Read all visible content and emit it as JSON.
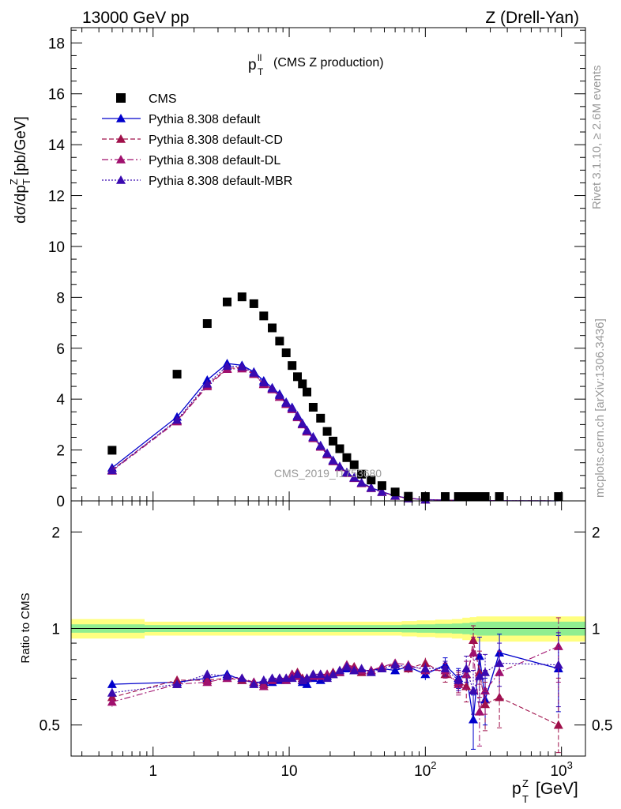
{
  "header": {
    "left": "13000 GeV pp",
    "right": "Z (Drell-Yan)"
  },
  "side": {
    "rivet": "Rivet 3.1.10, ≥ 2.6M events",
    "mcplots": "mcplots.cern.ch [arXiv:1306.3436]"
  },
  "title": {
    "main": "p",
    "sup": "ll",
    "sub": "T",
    "rest": "(CMS Z production)"
  },
  "watermark": "CMS_2019_I1753680",
  "colors": {
    "cms": "#000000",
    "default": "#0000cc",
    "cd": "#a0104a",
    "dl": "#a0106e",
    "mbr": "#3a0ab0",
    "band_yellow": "#ffff80",
    "band_green": "#90ee90"
  },
  "legend": {
    "placement": "top-left",
    "entries": [
      {
        "label": "CMS"
      },
      {
        "label": "Pythia 8.308 default"
      },
      {
        "label": "Pythia 8.308 default-CD"
      },
      {
        "label": "Pythia 8.308 default-DL"
      },
      {
        "label": "Pythia 8.308 default-MBR"
      }
    ]
  },
  "chart_data": [
    {
      "type": "scatter",
      "panel": "main",
      "ylabel": "dσ/dp",
      "ylabel_sup": "Z",
      "ylabel_sub": "T",
      "ylabel_unit": "[pb/GeV]",
      "xscale": "log",
      "xlim": [
        0.25,
        1500
      ],
      "ylim": [
        0,
        18.6
      ],
      "yticks": [
        0,
        2,
        4,
        6,
        8,
        10,
        12,
        14,
        16,
        18
      ],
      "x": [
        0.5,
        1.5,
        2.5,
        3.5,
        4.5,
        5.5,
        6.5,
        7.5,
        8.5,
        9.5,
        10.5,
        11.5,
        12.5,
        13.5,
        15,
        17,
        19,
        21,
        23.5,
        26.5,
        30,
        34,
        40,
        48,
        60,
        75,
        100,
        140,
        175,
        200,
        225,
        250,
        275,
        350,
        950
      ],
      "series": [
        {
          "key": "cms",
          "name": "CMS",
          "values": [
            1.99,
            4.98,
            6.97,
            7.82,
            8.02,
            7.75,
            7.27,
            6.8,
            6.28,
            5.82,
            5.32,
            4.88,
            4.6,
            4.28,
            3.68,
            3.25,
            2.73,
            2.35,
            2.05,
            1.7,
            1.42,
            1.05,
            0.82,
            0.6,
            0.35,
            0.18,
            0.1,
            0.05,
            0.03,
            0.02,
            0.015,
            0.012,
            0.01,
            0.005,
            0.001
          ]
        },
        {
          "key": "default",
          "name": "Pythia 8.308 default",
          "values": [
            1.3,
            3.3,
            4.75,
            5.4,
            5.33,
            5.07,
            4.72,
            4.45,
            4.2,
            3.88,
            3.68,
            3.35,
            3.05,
            2.78,
            2.52,
            2.18,
            1.88,
            1.6,
            1.36,
            1.12,
            0.92,
            0.72,
            0.52,
            0.36,
            0.2,
            0.1,
            0.05,
            0.03,
            0.02,
            0.012,
            0.009,
            0.007,
            0.005,
            0.003,
            0.001
          ]
        },
        {
          "key": "cd",
          "name": "Pythia 8.308 default-CD",
          "values": [
            1.22,
            3.15,
            4.55,
            5.2,
            5.25,
            5.0,
            4.6,
            4.4,
            4.1,
            3.82,
            3.62,
            3.3,
            3.02,
            2.74,
            2.48,
            2.14,
            1.84,
            1.57,
            1.33,
            1.1,
            0.9,
            0.7,
            0.5,
            0.35,
            0.19,
            0.1,
            0.05,
            0.03,
            0.02,
            0.012,
            0.009,
            0.007,
            0.005,
            0.003,
            0.001
          ]
        },
        {
          "key": "dl",
          "name": "Pythia 8.308 default-DL",
          "values": [
            1.18,
            3.12,
            4.5,
            5.18,
            5.2,
            4.98,
            4.58,
            4.38,
            4.08,
            3.8,
            3.6,
            3.28,
            3.0,
            2.72,
            2.46,
            2.12,
            1.82,
            1.55,
            1.32,
            1.09,
            0.89,
            0.69,
            0.5,
            0.34,
            0.19,
            0.1,
            0.05,
            0.03,
            0.02,
            0.012,
            0.009,
            0.007,
            0.005,
            0.003,
            0.001
          ]
        },
        {
          "key": "mbr",
          "name": "Pythia 8.308 default-MBR",
          "values": [
            1.2,
            3.18,
            4.6,
            5.3,
            5.28,
            5.03,
            4.65,
            4.42,
            4.15,
            3.85,
            3.65,
            3.32,
            3.03,
            2.76,
            2.5,
            2.16,
            1.86,
            1.58,
            1.35,
            1.11,
            0.91,
            0.71,
            0.51,
            0.35,
            0.2,
            0.1,
            0.05,
            0.03,
            0.02,
            0.012,
            0.009,
            0.007,
            0.005,
            0.003,
            0.001
          ]
        }
      ]
    },
    {
      "type": "line",
      "panel": "ratio",
      "ylabel": "Ratio to CMS",
      "xlabel": "p",
      "xlabel_sup": "Z",
      "xlabel_sub": "T",
      "xlabel_unit": "[GeV]",
      "xscale": "log",
      "yscale": "log",
      "xlim": [
        0.25,
        1500
      ],
      "ylim": [
        0.4,
        2.5
      ],
      "yticks": [
        0.5,
        1,
        2
      ],
      "xticks": [
        1,
        10,
        100,
        1000
      ],
      "xticklabels": [
        {
          "base": "1",
          "exp": ""
        },
        {
          "base": "10",
          "exp": ""
        },
        {
          "base": "10",
          "exp": "2"
        },
        {
          "base": "10",
          "exp": "3"
        }
      ],
      "x": [
        0.5,
        1.5,
        2.5,
        3.5,
        4.5,
        5.5,
        6.5,
        7.5,
        8.5,
        9.5,
        10.5,
        11.5,
        12.5,
        13.5,
        15,
        17,
        19,
        21,
        23.5,
        26.5,
        30,
        34,
        40,
        48,
        60,
        75,
        100,
        140,
        175,
        200,
        225,
        250,
        275,
        350,
        950
      ],
      "band_yellow_half": [
        0.07,
        0.05,
        0.05,
        0.05,
        0.05,
        0.05,
        0.05,
        0.05,
        0.05,
        0.05,
        0.05,
        0.05,
        0.05,
        0.05,
        0.05,
        0.05,
        0.05,
        0.05,
        0.05,
        0.05,
        0.05,
        0.05,
        0.05,
        0.05,
        0.05,
        0.055,
        0.06,
        0.065,
        0.07,
        0.08,
        0.085,
        0.09,
        0.09,
        0.09,
        0.09
      ],
      "band_green_half": [
        0.03,
        0.025,
        0.025,
        0.025,
        0.025,
        0.025,
        0.025,
        0.025,
        0.025,
        0.025,
        0.025,
        0.025,
        0.025,
        0.025,
        0.025,
        0.025,
        0.025,
        0.025,
        0.025,
        0.025,
        0.025,
        0.025,
        0.025,
        0.025,
        0.025,
        0.028,
        0.03,
        0.033,
        0.036,
        0.04,
        0.045,
        0.05,
        0.05,
        0.05,
        0.05
      ],
      "series": [
        {
          "key": "default",
          "name": "Pythia 8.308 default",
          "values": [
            0.67,
            0.68,
            0.7,
            0.72,
            0.69,
            0.68,
            0.68,
            0.68,
            0.69,
            0.69,
            0.71,
            0.71,
            0.68,
            0.67,
            0.7,
            0.69,
            0.71,
            0.72,
            0.73,
            0.75,
            0.74,
            0.74,
            0.74,
            0.75,
            0.74,
            0.76,
            0.72,
            0.77,
            0.7,
            0.72,
            0.52,
            0.82,
            0.6,
            0.84,
            0.75
          ],
          "err": [
            0.02,
            0.02,
            0.01,
            0.01,
            0.01,
            0.01,
            0.01,
            0.01,
            0.01,
            0.01,
            0.01,
            0.01,
            0.01,
            0.01,
            0.01,
            0.01,
            0.01,
            0.01,
            0.01,
            0.01,
            0.01,
            0.01,
            0.01,
            0.015,
            0.02,
            0.025,
            0.03,
            0.04,
            0.05,
            0.07,
            0.1,
            0.12,
            0.1,
            0.12,
            0.2
          ]
        },
        {
          "key": "cd",
          "name": "Pythia 8.308 default-CD",
          "values": [
            0.61,
            0.69,
            0.69,
            0.7,
            0.69,
            0.68,
            0.67,
            0.69,
            0.7,
            0.7,
            0.72,
            0.73,
            0.7,
            0.7,
            0.72,
            0.72,
            0.72,
            0.73,
            0.74,
            0.77,
            0.76,
            0.73,
            0.74,
            0.76,
            0.77,
            0.75,
            0.78,
            0.72,
            0.68,
            0.66,
            0.92,
            0.73,
            0.58,
            0.61,
            0.5
          ],
          "err": [
            0.02,
            0.02,
            0.01,
            0.01,
            0.01,
            0.01,
            0.01,
            0.01,
            0.01,
            0.01,
            0.01,
            0.01,
            0.01,
            0.01,
            0.01,
            0.01,
            0.01,
            0.01,
            0.01,
            0.01,
            0.01,
            0.01,
            0.01,
            0.015,
            0.02,
            0.025,
            0.03,
            0.04,
            0.05,
            0.07,
            0.1,
            0.12,
            0.1,
            0.12,
            0.2
          ]
        },
        {
          "key": "dl",
          "name": "Pythia 8.308 default-DL",
          "values": [
            0.59,
            0.67,
            0.68,
            0.7,
            0.7,
            0.68,
            0.66,
            0.69,
            0.7,
            0.69,
            0.72,
            0.71,
            0.69,
            0.7,
            0.71,
            0.71,
            0.72,
            0.72,
            0.73,
            0.77,
            0.75,
            0.74,
            0.74,
            0.76,
            0.78,
            0.77,
            0.74,
            0.74,
            0.67,
            0.72,
            0.84,
            0.55,
            0.64,
            0.73,
            0.88
          ],
          "err": [
            0.02,
            0.02,
            0.01,
            0.01,
            0.01,
            0.01,
            0.01,
            0.01,
            0.01,
            0.01,
            0.01,
            0.01,
            0.01,
            0.01,
            0.01,
            0.01,
            0.01,
            0.01,
            0.01,
            0.01,
            0.01,
            0.01,
            0.01,
            0.015,
            0.02,
            0.025,
            0.03,
            0.04,
            0.05,
            0.07,
            0.1,
            0.12,
            0.1,
            0.12,
            0.2
          ]
        },
        {
          "key": "mbr",
          "name": "Pythia 8.308 default-MBR",
          "values": [
            0.63,
            0.67,
            0.72,
            0.71,
            0.7,
            0.67,
            0.69,
            0.7,
            0.7,
            0.7,
            0.7,
            0.72,
            0.69,
            0.7,
            0.72,
            0.72,
            0.7,
            0.72,
            0.74,
            0.76,
            0.74,
            0.75,
            0.73,
            0.75,
            0.77,
            0.76,
            0.75,
            0.75,
            0.69,
            0.75,
            0.64,
            0.71,
            0.73,
            0.78,
            0.77
          ],
          "err": [
            0.02,
            0.02,
            0.01,
            0.01,
            0.01,
            0.01,
            0.01,
            0.01,
            0.01,
            0.01,
            0.01,
            0.01,
            0.01,
            0.01,
            0.01,
            0.01,
            0.01,
            0.01,
            0.01,
            0.01,
            0.01,
            0.01,
            0.01,
            0.015,
            0.02,
            0.025,
            0.03,
            0.04,
            0.05,
            0.07,
            0.1,
            0.12,
            0.1,
            0.12,
            0.2
          ]
        }
      ]
    }
  ]
}
